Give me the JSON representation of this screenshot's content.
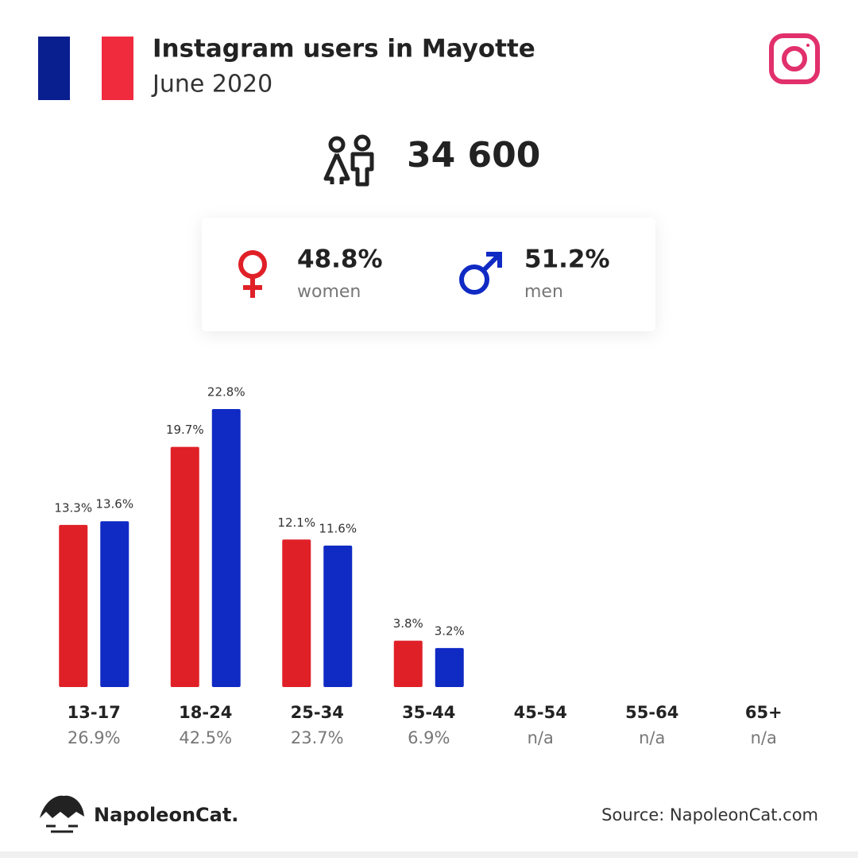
{
  "header": {
    "title": "Instagram users in Mayotte",
    "subtitle": "June 2020"
  },
  "total_users": "34 600",
  "gender": {
    "women": {
      "share": "48.8%",
      "label": "women"
    },
    "men": {
      "share": "51.2%",
      "label": "men"
    }
  },
  "chart_data": {
    "type": "bar",
    "categories": [
      "13-17",
      "18-24",
      "25-34",
      "35-44",
      "45-54",
      "55-64",
      "65+"
    ],
    "category_totals": [
      "26.9%",
      "42.5%",
      "23.7%",
      "6.9%",
      "n/a",
      "n/a",
      "n/a"
    ],
    "series": [
      {
        "name": "women",
        "color": "#e02027",
        "values": [
          13.3,
          19.7,
          12.1,
          3.8,
          null,
          null,
          null
        ],
        "value_labels": [
          "13.3%",
          "19.7%",
          "12.1%",
          "3.8%",
          null,
          null,
          null
        ]
      },
      {
        "name": "men",
        "color": "#102ac4",
        "values": [
          13.6,
          22.8,
          11.6,
          3.2,
          null,
          null,
          null
        ],
        "value_labels": [
          "13.6%",
          "22.8%",
          "11.6%",
          "3.2%",
          null,
          null,
          null
        ]
      }
    ]
  },
  "footer": {
    "brand": "NapoleonCat.",
    "source": "Source: NapoleonCat.com"
  }
}
